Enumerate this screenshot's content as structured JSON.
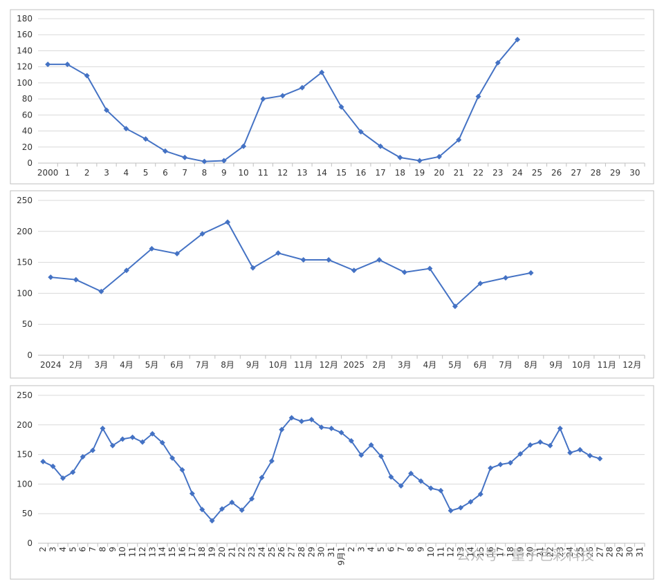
{
  "chart_data": [
    {
      "type": "line",
      "categories": [
        "2000",
        "1",
        "2",
        "3",
        "4",
        "5",
        "6",
        "7",
        "8",
        "9",
        "10",
        "11",
        "12",
        "13",
        "14",
        "15",
        "16",
        "17",
        "18",
        "19",
        "20",
        "21",
        "22",
        "23",
        "24",
        "25",
        "26",
        "27",
        "28",
        "29",
        "30"
      ],
      "series": [
        {
          "color": "#4472c4",
          "values": [
            123,
            123,
            109,
            66,
            43,
            30,
            15,
            7,
            2,
            3,
            21,
            80,
            84,
            94,
            113,
            70,
            39,
            21,
            7,
            3,
            8,
            29,
            83,
            125,
            154,
            null,
            null,
            null,
            null,
            null,
            null
          ]
        }
      ],
      "ylim": [
        0,
        180
      ],
      "yticks": [
        0,
        20,
        40,
        60,
        80,
        100,
        120,
        140,
        160,
        180
      ],
      "grid": true
    },
    {
      "type": "line",
      "categories": [
        "2024",
        "2月",
        "3月",
        "4月",
        "5月",
        "6月",
        "7月",
        "8月",
        "9月",
        "10月",
        "11月",
        "12月",
        "2025",
        "2月",
        "3月",
        "4月",
        "5月",
        "6月",
        "7月",
        "8月",
        "9月",
        "10月",
        "11月",
        "12月"
      ],
      "series": [
        {
          "color": "#4472c4",
          "values": [
            126,
            122,
            103,
            137,
            172,
            164,
            196,
            215,
            141,
            165,
            154,
            154,
            137,
            154,
            134,
            140,
            79,
            116,
            125,
            133,
            null,
            null,
            null,
            null
          ]
        }
      ],
      "ylim": [
        0,
        250
      ],
      "yticks": [
        0,
        50,
        100,
        150,
        200,
        250
      ],
      "grid": true
    },
    {
      "type": "line",
      "categories": [
        "2",
        "3",
        "4",
        "5",
        "6",
        "7",
        "8",
        "9",
        "10",
        "11",
        "12",
        "13",
        "14",
        "15",
        "16",
        "17",
        "18",
        "19",
        "20",
        "21",
        "22",
        "23",
        "24",
        "25",
        "26",
        "27",
        "28",
        "29",
        "30",
        "31",
        "9月1",
        "2",
        "3",
        "4",
        "5",
        "6",
        "7",
        "8",
        "9",
        "10",
        "11",
        "12",
        "13",
        "14",
        "15",
        "16",
        "17",
        "18",
        "19",
        "20",
        "21",
        "22",
        "23",
        "24",
        "25",
        "26",
        "27",
        "28",
        "29",
        "30",
        "31"
      ],
      "series": [
        {
          "color": "#4472c4",
          "values": [
            138,
            130,
            110,
            120,
            146,
            157,
            194,
            165,
            176,
            179,
            171,
            185,
            170,
            144,
            124,
            84,
            57,
            38,
            58,
            69,
            56,
            75,
            111,
            139,
            192,
            212,
            206,
            209,
            196,
            194,
            187,
            173,
            149,
            166,
            147,
            112,
            97,
            118,
            105,
            93,
            89,
            55,
            60,
            70,
            83,
            127,
            133,
            136,
            151,
            166,
            171,
            165,
            194,
            153,
            158,
            148,
            143,
            null,
            null,
            null,
            null
          ]
        }
      ],
      "ylim": [
        0,
        250
      ],
      "yticks": [
        0,
        50,
        100,
        150,
        200,
        250
      ],
      "grid": true
    }
  ],
  "watermark": "公众号 · 量子色彩科技"
}
